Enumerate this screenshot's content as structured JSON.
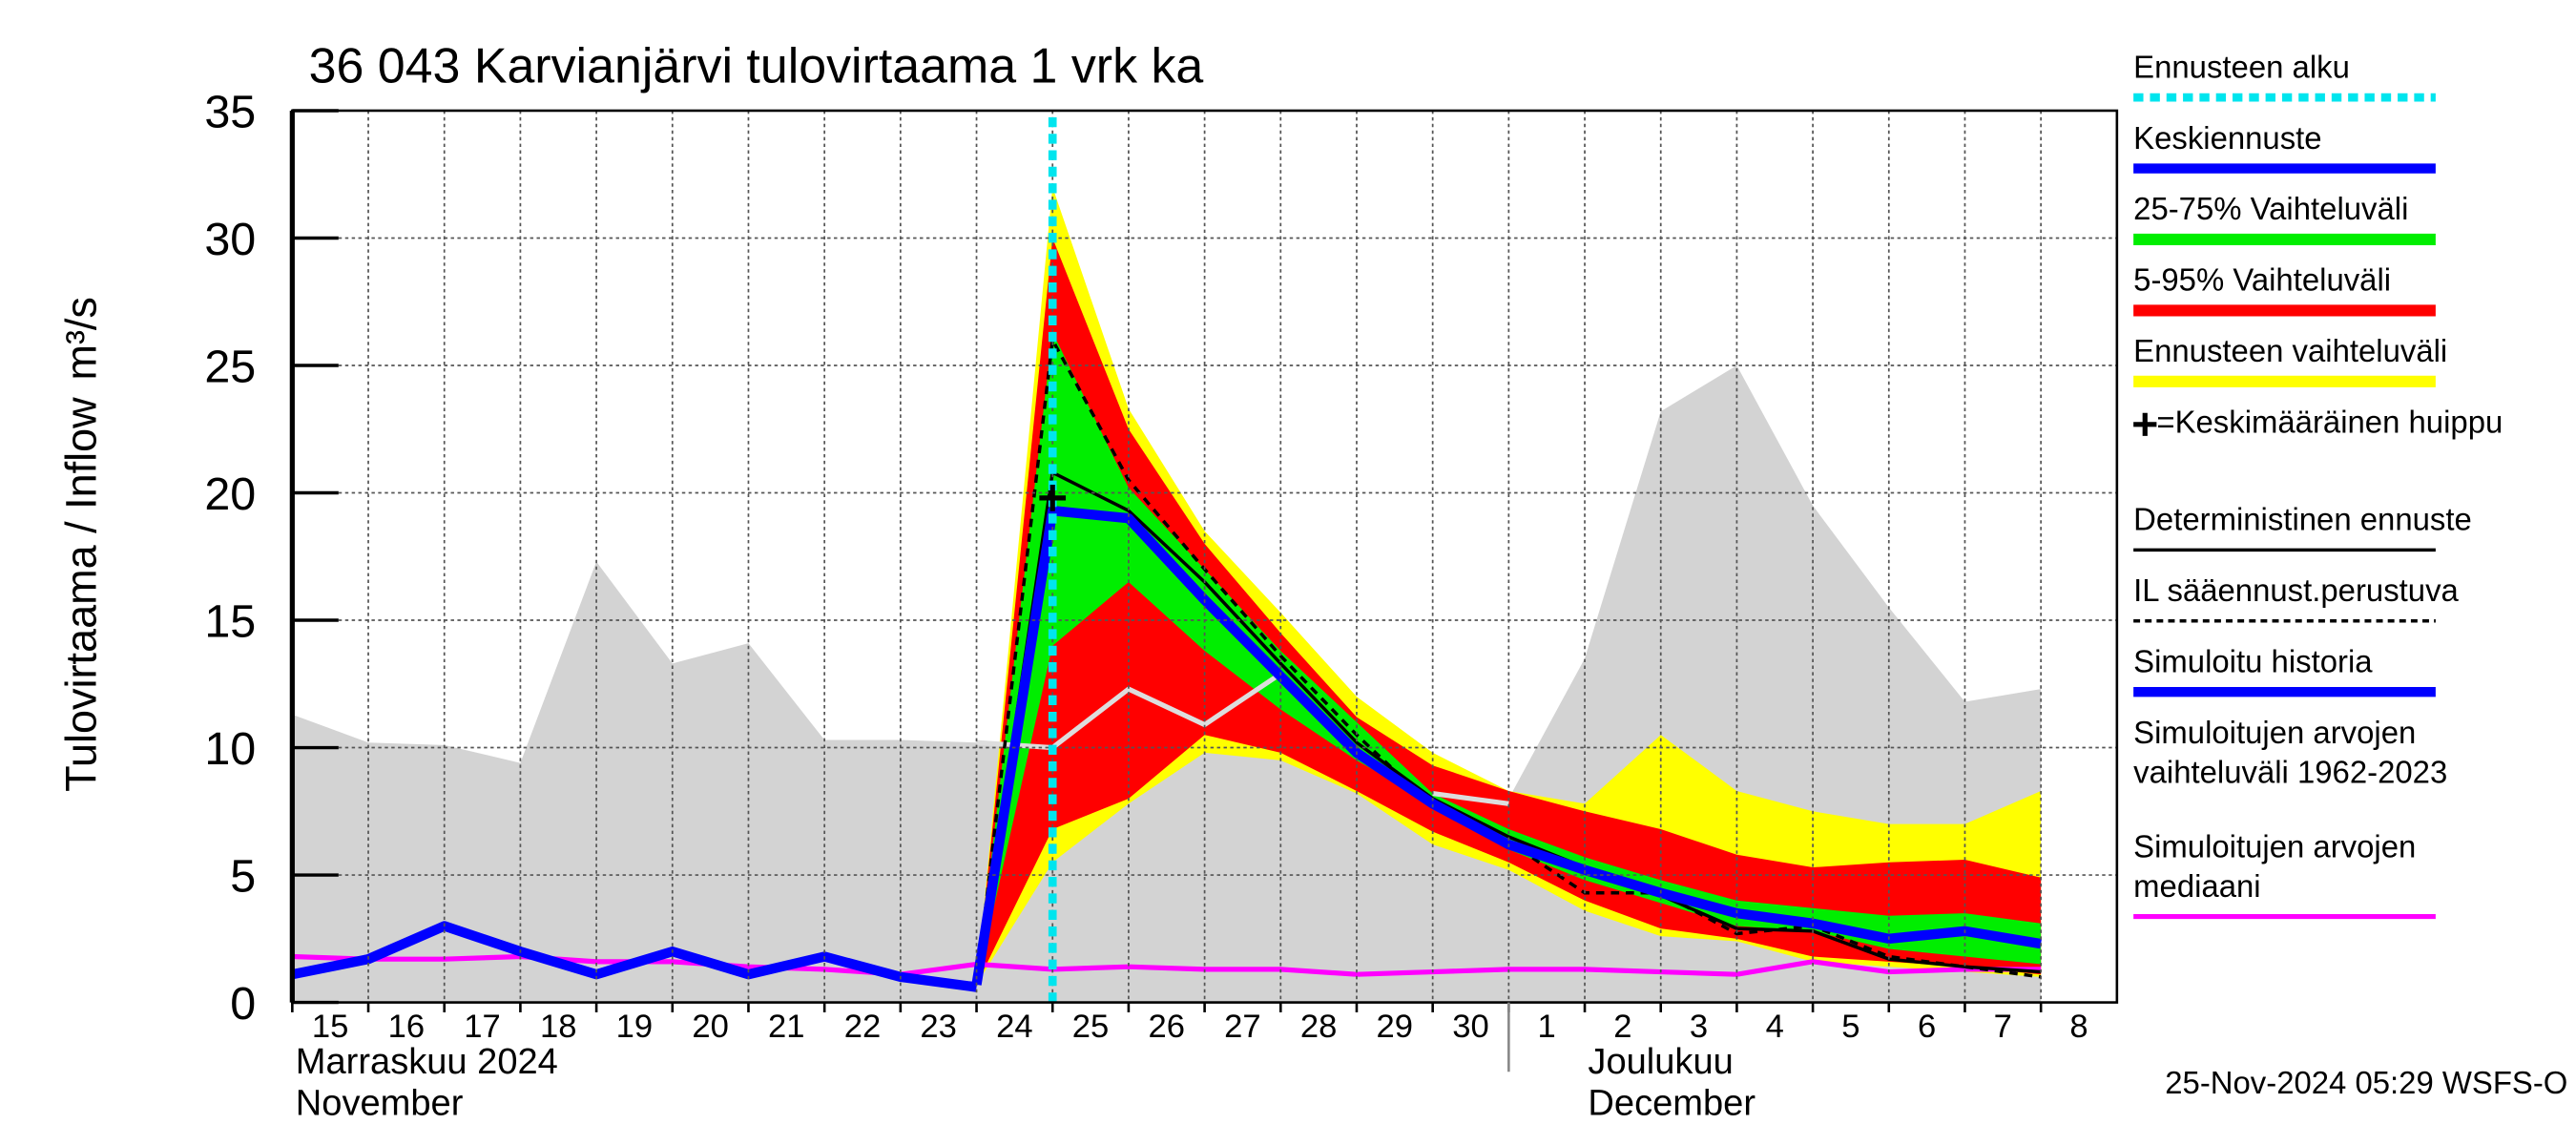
{
  "chart_data": {
    "type": "line",
    "title": "36 043 Karvianjärvi tulovirtaama 1 vrk ka",
    "y_label": "Tulovirtaama / Inflow",
    "y_unit": "m³/s",
    "footer": "25-Nov-2024 05:29 WSFS-O",
    "x": [
      "2024-11-15",
      "2024-11-16",
      "2024-11-17",
      "2024-11-18",
      "2024-11-19",
      "2024-11-20",
      "2024-11-21",
      "2024-11-22",
      "2024-11-23",
      "2024-11-24",
      "2024-11-25",
      "2024-11-26",
      "2024-11-27",
      "2024-11-28",
      "2024-11-29",
      "2024-11-30",
      "2024-12-01",
      "2024-12-02",
      "2024-12-03",
      "2024-12-04",
      "2024-12-05",
      "2024-12-06",
      "2024-12-07",
      "2024-12-08"
    ],
    "xlim": [
      "2024-11-15",
      "2024-12-09"
    ],
    "xticks": [
      {
        "value": "2024-11-15",
        "label": "15"
      },
      {
        "value": "2024-11-16",
        "label": "16"
      },
      {
        "value": "2024-11-17",
        "label": "17"
      },
      {
        "value": "2024-11-18",
        "label": "18"
      },
      {
        "value": "2024-11-19",
        "label": "19"
      },
      {
        "value": "2024-11-20",
        "label": "20"
      },
      {
        "value": "2024-11-21",
        "label": "21"
      },
      {
        "value": "2024-11-22",
        "label": "22"
      },
      {
        "value": "2024-11-23",
        "label": "23"
      },
      {
        "value": "2024-11-24",
        "label": "24"
      },
      {
        "value": "2024-11-25",
        "label": "25"
      },
      {
        "value": "2024-11-26",
        "label": "26"
      },
      {
        "value": "2024-11-27",
        "label": "27"
      },
      {
        "value": "2024-11-28",
        "label": "28"
      },
      {
        "value": "2024-11-29",
        "label": "29"
      },
      {
        "value": "2024-11-30",
        "label": "30"
      },
      {
        "value": "2024-12-01",
        "label": "1"
      },
      {
        "value": "2024-12-02",
        "label": "2"
      },
      {
        "value": "2024-12-03",
        "label": "3"
      },
      {
        "value": "2024-12-04",
        "label": "4"
      },
      {
        "value": "2024-12-05",
        "label": "5"
      },
      {
        "value": "2024-12-06",
        "label": "6"
      },
      {
        "value": "2024-12-07",
        "label": "7"
      },
      {
        "value": "2024-12-08",
        "label": "8"
      }
    ],
    "month_labels": [
      {
        "value": "2024-11-15",
        "label": [
          "Marraskuu 2024",
          "November"
        ]
      },
      {
        "value": "2024-12-01",
        "label": [
          "Joulukuu",
          "December"
        ]
      }
    ],
    "ylim": [
      0,
      35
    ],
    "yticks": [
      0,
      5,
      10,
      15,
      20,
      25,
      30,
      35
    ],
    "grid": true,
    "forecast_start": {
      "name": "Ennusteen alku",
      "x": "2024-11-25",
      "color": "#00e5ee"
    },
    "mean_peak": {
      "name": "=Keskimääräinen huippu",
      "marker": "+",
      "x": "2024-11-25",
      "y": 19.8,
      "color": "#000000"
    },
    "series": [
      {
        "name": "Keskiennuste",
        "color": "#0000ff",
        "width": 6,
        "values": [
          null,
          null,
          null,
          null,
          null,
          null,
          null,
          null,
          null,
          0.7,
          19.3,
          19.0,
          15.8,
          12.8,
          9.8,
          7.8,
          6.2,
          5.2,
          4.3,
          3.5,
          3.1,
          2.5,
          2.8,
          2.3
        ]
      },
      {
        "name": "25-75% Vaihteluväli",
        "color": "#00ee00",
        "band": true,
        "upper": [
          null,
          null,
          null,
          null,
          null,
          null,
          null,
          null,
          null,
          0.7,
          26.3,
          20.2,
          17,
          13.8,
          11,
          8.2,
          6.8,
          5.7,
          4.8,
          4.0,
          3.7,
          3.4,
          3.5,
          3.1
        ],
        "lower": [
          null,
          null,
          null,
          null,
          null,
          null,
          null,
          null,
          null,
          0.7,
          14,
          16.5,
          13.8,
          11.5,
          9.5,
          7.8,
          6.0,
          4.8,
          3.9,
          3.0,
          2.8,
          2.1,
          1.8,
          1.5
        ]
      },
      {
        "name": "5-95% Vaihteluväli",
        "color": "#ff0000",
        "band": true,
        "upper": [
          null,
          null,
          null,
          null,
          null,
          null,
          null,
          null,
          null,
          0.7,
          30,
          22.5,
          18,
          14.5,
          11.2,
          9.3,
          8.3,
          7.5,
          6.8,
          5.8,
          5.3,
          5.5,
          5.6,
          4.9
        ],
        "lower": [
          null,
          null,
          null,
          null,
          null,
          null,
          null,
          null,
          null,
          0.7,
          6.8,
          8,
          10.5,
          9.8,
          8.3,
          6.7,
          5.5,
          4.0,
          2.9,
          2.5,
          1.8,
          1.6,
          1.4,
          1.1
        ]
      },
      {
        "name": "Ennusteen vaihteluväli",
        "color": "#ffff00",
        "band": true,
        "upper": [
          null,
          null,
          null,
          null,
          null,
          null,
          null,
          null,
          null,
          0.7,
          32,
          23.3,
          18.5,
          15.3,
          12,
          9.8,
          8.3,
          7.8,
          10.5,
          8.3,
          7.5,
          7.0,
          7.0,
          8.3
        ],
        "lower": [
          null,
          null,
          null,
          null,
          null,
          null,
          null,
          null,
          null,
          0.7,
          5.5,
          7.8,
          9.8,
          9.5,
          8.2,
          6.2,
          5.2,
          3.6,
          2.6,
          2.4,
          1.6,
          1.4,
          1.2,
          1.0
        ]
      },
      {
        "name": "Deterministinen ennuste",
        "color": "#000000",
        "width": 2,
        "values": [
          null,
          null,
          null,
          null,
          null,
          null,
          null,
          null,
          null,
          0.7,
          20.8,
          19.3,
          16.5,
          13.3,
          10.2,
          8.0,
          6.5,
          5.3,
          4.2,
          2.9,
          2.8,
          1.7,
          1.4,
          1.2
        ]
      },
      {
        "name": "IL sääennust.perustuva",
        "color": "#000000",
        "width": 2,
        "dash": true,
        "values": [
          null,
          null,
          null,
          null,
          null,
          null,
          null,
          null,
          null,
          0.7,
          26.0,
          20.5,
          17.0,
          13.6,
          10.5,
          7.7,
          6.3,
          4.3,
          4.3,
          2.7,
          3.0,
          1.8,
          1.4,
          1.0
        ]
      },
      {
        "name": "Simuloitu historia",
        "color": "#0000ff",
        "width": 6,
        "values": [
          1.1,
          1.7,
          3.0,
          2.0,
          1.1,
          2.0,
          1.1,
          1.8,
          1.0,
          0.6,
          null,
          null,
          null,
          null,
          null,
          null,
          null,
          null,
          null,
          null,
          null,
          null,
          null,
          null
        ]
      },
      {
        "name": "Simuloitujen arvojen vaihteluväli 1962-2023",
        "color": "#d3d3d3",
        "band": true,
        "upper": [
          11.3,
          10.2,
          10.1,
          9.4,
          17.3,
          13.3,
          14.1,
          10.3,
          10.3,
          10.2,
          10.2,
          10.0,
          9.8,
          9.6,
          9.0,
          8.2,
          8.0,
          13.5,
          23.2,
          25.0,
          19.5,
          15.5,
          11.8,
          12.3
        ],
        "lower": [
          0,
          0,
          0,
          0,
          0,
          0,
          0,
          0,
          0,
          0,
          0,
          0,
          0,
          0,
          0,
          0,
          0,
          0,
          0,
          0,
          0,
          0,
          0,
          0
        ]
      },
      {
        "name": "Simuloitujen arvojen mediaani",
        "color": "#ff00ff",
        "width": 3,
        "values": [
          1.8,
          1.7,
          1.7,
          1.8,
          1.6,
          1.6,
          1.4,
          1.3,
          1.1,
          1.5,
          1.3,
          1.4,
          1.3,
          1.3,
          1.1,
          1.2,
          1.3,
          1.3,
          1.2,
          1.1,
          1.6,
          1.2,
          1.3,
          1.3
        ]
      },
      {
        "color": "#dddddd",
        "width": 3,
        "values": [
          null,
          null,
          null,
          null,
          null,
          null,
          null,
          null,
          null,
          10.2,
          10.0,
          12.3,
          10.9,
          12.9,
          null,
          8.2,
          7.8,
          null,
          null,
          null,
          null,
          null,
          null,
          null
        ]
      }
    ]
  }
}
